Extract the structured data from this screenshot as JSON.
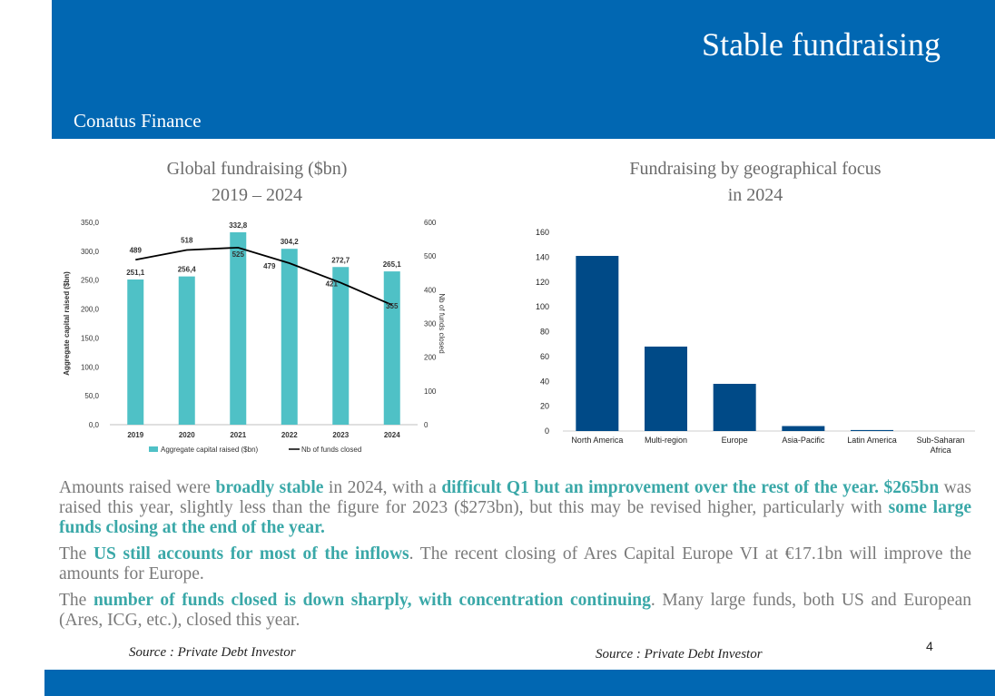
{
  "header": {
    "title": "Stable fundraising",
    "brand": "Conatus Finance"
  },
  "chart_data": [
    {
      "type": "bar",
      "title_line1": "Global fundraising ($bn)",
      "title_line2": "2019 – 2024",
      "categories": [
        "2019",
        "2020",
        "2021",
        "2022",
        "2023",
        "2024"
      ],
      "series": [
        {
          "name": "Aggregate capital raised ($bn)",
          "type": "bar",
          "axis": "left",
          "values": [
            251.1,
            256.4,
            332.8,
            304.2,
            272.7,
            265.1
          ],
          "labels": [
            "251,1",
            "256,4",
            "332,8",
            "304,2",
            "272,7",
            "265,1"
          ],
          "color": "#4fc1c6"
        },
        {
          "name": "Nb of funds closed",
          "type": "line",
          "axis": "right",
          "values": [
            489,
            518,
            525,
            479,
            421,
            355
          ],
          "labels": [
            "489",
            "518",
            "525",
            "479",
            "421",
            "355"
          ],
          "color": "#000000"
        }
      ],
      "ylabel_left": "Aggregate capital raised ($bn)",
      "ylabel_right": "Nb of funds closed",
      "ylim_left": [
        0,
        350
      ],
      "ylim_right": [
        0,
        600
      ],
      "yticks_left": [
        "0,0",
        "50,0",
        "100,0",
        "150,0",
        "200,0",
        "250,0",
        "300,0",
        "350,0"
      ],
      "yticks_right": [
        "0",
        "100",
        "200",
        "300",
        "400",
        "500",
        "600"
      ],
      "legend": "bottom"
    },
    {
      "type": "bar",
      "title_line1": "Fundraising by geographical focus",
      "title_line2": "in 2024",
      "categories": [
        "North America",
        "Multi-region",
        "Europe",
        "Asia-Pacific",
        "Latin America",
        "Sub-Saharan Africa"
      ],
      "values": [
        141,
        68,
        38,
        4,
        0.8,
        0
      ],
      "ylim": [
        0,
        160
      ],
      "yticks": [
        "0",
        "20",
        "40",
        "60",
        "80",
        "100",
        "120",
        "140",
        "160"
      ],
      "color": "#004a87"
    }
  ],
  "text": {
    "p1": [
      {
        "t": "Amounts raised were ",
        "h": false
      },
      {
        "t": "broadly stable",
        "h": true
      },
      {
        "t": " in 2024, with a ",
        "h": false
      },
      {
        "t": "difficult Q1 but an improvement over the rest of the year. $265bn",
        "h": true
      },
      {
        "t": " was raised this year, slightly less than the figure for 2023 ($273bn), but this may be revised higher, particularly with ",
        "h": false
      },
      {
        "t": "some large funds closing at the end of the year.",
        "h": true
      }
    ],
    "p2": [
      {
        "t": "The ",
        "h": false
      },
      {
        "t": "US still accounts for most of the inflows",
        "h": true
      },
      {
        "t": ". The recent closing of Ares Capital Europe VI at €17.1bn will improve the amounts for Europe.",
        "h": false
      }
    ],
    "p3": [
      {
        "t": "The ",
        "h": false
      },
      {
        "t": "number of funds closed is down sharply, with concentration continuing",
        "h": true
      },
      {
        "t": ". Many large funds, both US and European (Ares, ICG, etc.), closed this year.",
        "h": false
      }
    ]
  },
  "sources": {
    "left": "Source : Private Debt Investor",
    "right": "Source : Private Debt Investor"
  },
  "page_number": "4"
}
